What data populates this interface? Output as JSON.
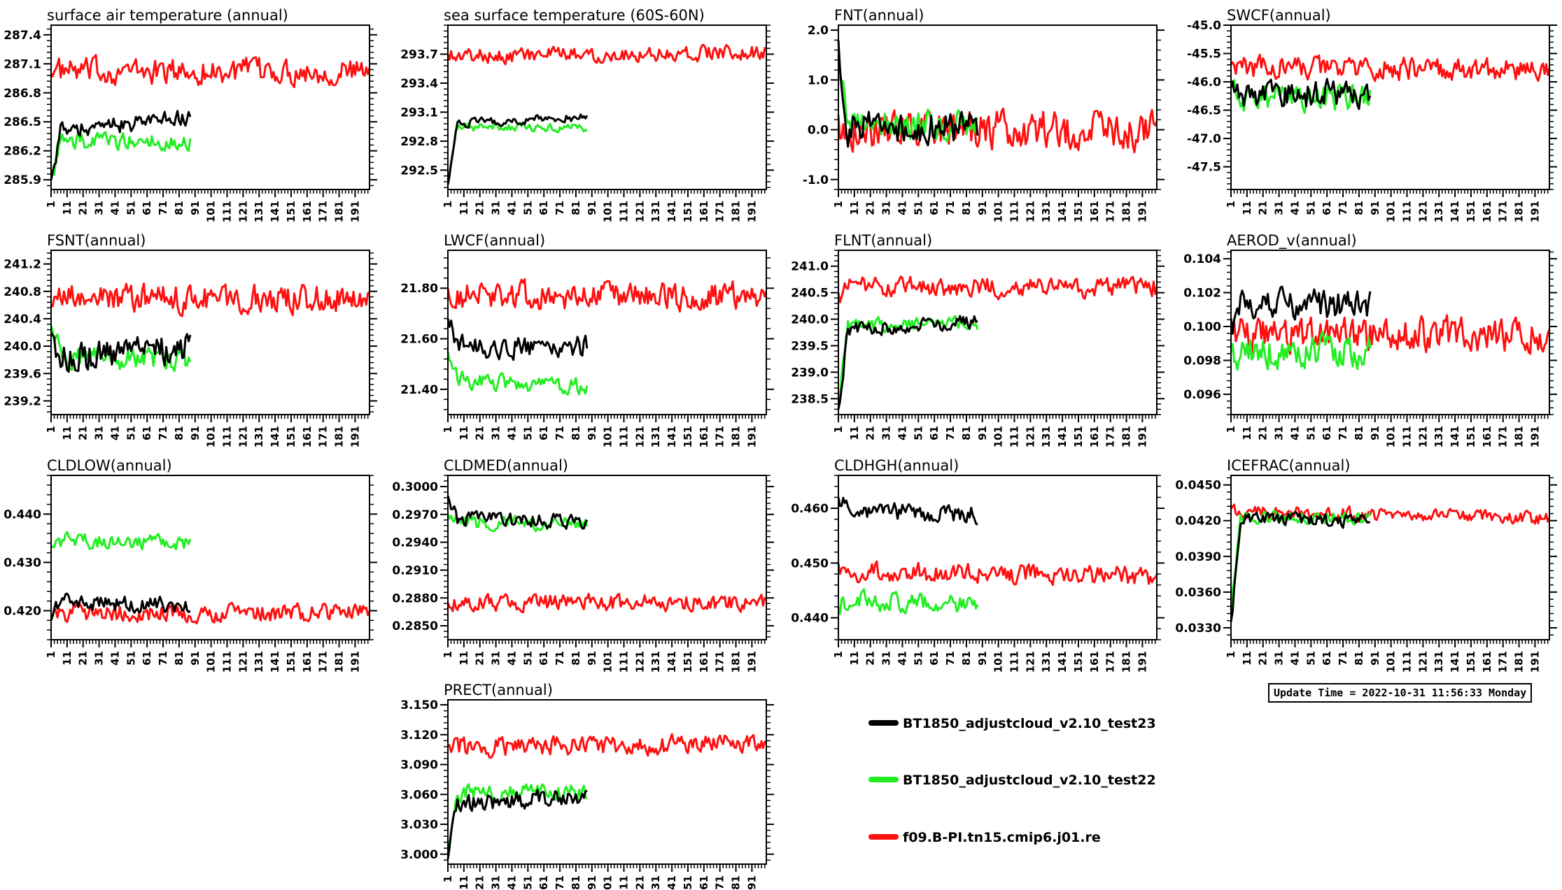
{
  "update_time": "Update Time = 2022-10-31 11:56:33 Monday",
  "x_tick_labels": [
    "1",
    "11",
    "21",
    "31",
    "41",
    "51",
    "61",
    "71",
    "81",
    "91",
    "101",
    "111",
    "121",
    "131",
    "141",
    "151",
    "161",
    "171",
    "181",
    "191"
  ],
  "legend": [
    {
      "name": "BT1850_adjustcloud_v2.10_test23",
      "color": "#000000"
    },
    {
      "name": "BT1850_adjustcloud_v2.10_test22",
      "color": "#22ee22"
    },
    {
      "name": "f09.B-PI.tn15.cmip6.j01.re",
      "color": "#ff1010"
    }
  ],
  "chart_data": [
    {
      "type": "line",
      "title": "surface air temperature (annual)",
      "xlim": [
        1,
        200
      ],
      "ylim": [
        285.8,
        287.5
      ],
      "yticks": [
        "285.9",
        "286.2",
        "286.5",
        "286.8",
        "287.1",
        "287.4"
      ],
      "ytick_values": [
        285.9,
        286.2,
        286.5,
        286.8,
        287.1,
        287.4
      ],
      "series": [
        {
          "color": "#ff1010",
          "length": 200,
          "start": 287.0,
          "level": 287.02,
          "noise": 0.12,
          "end": 287.02
        },
        {
          "color": "#22ee22",
          "length": 88,
          "start": 285.9,
          "level": 286.3,
          "noise": 0.08,
          "end": 286.3
        },
        {
          "color": "#000000",
          "length": 88,
          "start": 285.9,
          "level": 286.38,
          "noise": 0.08,
          "end": 286.55
        }
      ]
    },
    {
      "type": "line",
      "title": "sea surface temperature (60S-60N)",
      "xlim": [
        1,
        200
      ],
      "ylim": [
        292.3,
        294.0
      ],
      "yticks": [
        "292.5",
        "292.8",
        "293.1",
        "293.4",
        "293.7"
      ],
      "ytick_values": [
        292.5,
        292.8,
        293.1,
        293.4,
        293.7
      ],
      "series": [
        {
          "color": "#ff1010",
          "length": 200,
          "start": 293.7,
          "level": 293.68,
          "noise": 0.07,
          "end": 293.72
        },
        {
          "color": "#22ee22",
          "length": 88,
          "start": 292.4,
          "level": 292.95,
          "noise": 0.04,
          "end": 292.93
        },
        {
          "color": "#000000",
          "length": 88,
          "start": 292.35,
          "level": 292.98,
          "noise": 0.04,
          "end": 293.05
        }
      ]
    },
    {
      "type": "line",
      "title": "FNT(annual)",
      "xlim": [
        1,
        200
      ],
      "ylim": [
        -1.2,
        2.1
      ],
      "yticks": [
        "-1.0",
        "0.0",
        "1.0",
        "2.0"
      ],
      "ytick_values": [
        -1.0,
        0.0,
        1.0,
        2.0
      ],
      "series": [
        {
          "color": "#ff1010",
          "length": 200,
          "start": 0.3,
          "level": 0.0,
          "noise": 0.35,
          "end": 0.0
        },
        {
          "color": "#22ee22",
          "length": 88,
          "start": 1.5,
          "level": 0.1,
          "noise": 0.25,
          "end": 0.1
        },
        {
          "color": "#000000",
          "length": 88,
          "start": 1.8,
          "level": 0.05,
          "noise": 0.3,
          "end": 0.05
        }
      ]
    },
    {
      "type": "line",
      "title": "SWCF(annual)",
      "xlim": [
        1,
        200
      ],
      "ylim": [
        -47.9,
        -45.0
      ],
      "yticks": [
        "-47.5",
        "-47.0",
        "-46.5",
        "-46.0",
        "-45.5",
        "-45.0"
      ],
      "ytick_values": [
        -47.5,
        -47.0,
        -46.5,
        -46.0,
        -45.5,
        -45.0
      ],
      "series": [
        {
          "color": "#ff1010",
          "length": 200,
          "start": -45.7,
          "level": -45.75,
          "noise": 0.18,
          "end": -45.8
        },
        {
          "color": "#22ee22",
          "length": 88,
          "start": -46.1,
          "level": -46.3,
          "noise": 0.2,
          "end": -46.3
        },
        {
          "color": "#000000",
          "length": 88,
          "start": -46.1,
          "level": -46.25,
          "noise": 0.22,
          "end": -46.2
        }
      ]
    },
    {
      "type": "line",
      "title": "FSNT(annual)",
      "xlim": [
        1,
        200
      ],
      "ylim": [
        239.0,
        241.4
      ],
      "yticks": [
        "239.2",
        "239.6",
        "240.0",
        "240.4",
        "240.8",
        "241.2"
      ],
      "ytick_values": [
        239.2,
        239.6,
        240.0,
        240.4,
        240.8,
        241.2
      ],
      "series": [
        {
          "color": "#ff1010",
          "length": 200,
          "start": 240.6,
          "level": 240.7,
          "noise": 0.18,
          "end": 240.7
        },
        {
          "color": "#22ee22",
          "length": 88,
          "start": 240.3,
          "level": 239.85,
          "noise": 0.15,
          "end": 239.8
        },
        {
          "color": "#000000",
          "length": 88,
          "start": 240.2,
          "level": 239.8,
          "noise": 0.2,
          "end": 240.0
        }
      ]
    },
    {
      "type": "line",
      "title": "LWCF(annual)",
      "xlim": [
        1,
        200
      ],
      "ylim": [
        21.3,
        21.95
      ],
      "yticks": [
        "21.40",
        "21.60",
        "21.80"
      ],
      "ytick_values": [
        21.4,
        21.6,
        21.8
      ],
      "series": [
        {
          "color": "#ff1010",
          "length": 200,
          "start": 21.8,
          "level": 21.77,
          "noise": 0.05,
          "end": 21.77
        },
        {
          "color": "#22ee22",
          "length": 88,
          "start": 21.55,
          "level": 21.44,
          "noise": 0.03,
          "end": 21.41
        },
        {
          "color": "#000000",
          "length": 88,
          "start": 21.68,
          "level": 21.57,
          "noise": 0.04,
          "end": 21.57
        }
      ]
    },
    {
      "type": "line",
      "title": "FLNT(annual)",
      "xlim": [
        1,
        200
      ],
      "ylim": [
        238.2,
        241.3
      ],
      "yticks": [
        "238.5",
        "239.0",
        "239.5",
        "240.0",
        "240.5",
        "241.0"
      ],
      "ytick_values": [
        238.5,
        239.0,
        239.5,
        240.0,
        240.5,
        241.0
      ],
      "series": [
        {
          "color": "#ff1010",
          "length": 200,
          "start": 240.5,
          "level": 240.6,
          "noise": 0.17,
          "end": 240.6
        },
        {
          "color": "#22ee22",
          "length": 88,
          "start": 238.4,
          "level": 239.9,
          "noise": 0.12,
          "end": 239.9
        },
        {
          "color": "#000000",
          "length": 88,
          "start": 238.3,
          "level": 239.8,
          "noise": 0.12,
          "end": 239.95
        }
      ]
    },
    {
      "type": "line",
      "title": "AEROD_v(annual)",
      "xlim": [
        1,
        200
      ],
      "ylim": [
        0.0948,
        0.1045
      ],
      "yticks": [
        "0.096",
        "0.098",
        "0.100",
        "0.102",
        "0.104"
      ],
      "ytick_values": [
        0.096,
        0.098,
        0.1,
        0.102,
        0.104
      ],
      "series": [
        {
          "color": "#ff1010",
          "length": 200,
          "start": 0.1,
          "level": 0.0995,
          "noise": 0.0009,
          "end": 0.0995
        },
        {
          "color": "#22ee22",
          "length": 88,
          "start": 0.0985,
          "level": 0.0985,
          "noise": 0.0009,
          "end": 0.0985
        },
        {
          "color": "#000000",
          "length": 88,
          "start": 0.1005,
          "level": 0.1013,
          "noise": 0.0008,
          "end": 0.1013
        }
      ]
    },
    {
      "type": "line",
      "title": "CLDLOW(annual)",
      "xlim": [
        1,
        200
      ],
      "ylim": [
        0.414,
        0.448
      ],
      "yticks": [
        "0.420",
        "0.430",
        "0.440"
      ],
      "ytick_values": [
        0.42,
        0.43,
        0.44
      ],
      "series": [
        {
          "color": "#ff1010",
          "length": 200,
          "start": 0.419,
          "level": 0.4195,
          "noise": 0.0016,
          "end": 0.4195
        },
        {
          "color": "#22ee22",
          "length": 88,
          "start": 0.433,
          "level": 0.4345,
          "noise": 0.0014,
          "end": 0.434
        },
        {
          "color": "#000000",
          "length": 88,
          "start": 0.418,
          "level": 0.422,
          "noise": 0.0015,
          "end": 0.421
        }
      ]
    },
    {
      "type": "line",
      "title": "CLDMED(annual)",
      "xlim": [
        1,
        200
      ],
      "ylim": [
        0.2835,
        0.3012
      ],
      "yticks": [
        "0.2850",
        "0.2880",
        "0.2910",
        "0.2940",
        "0.2970",
        "0.3000"
      ],
      "ytick_values": [
        0.285,
        0.288,
        0.291,
        0.294,
        0.297,
        0.3
      ],
      "series": [
        {
          "color": "#ff1010",
          "length": 200,
          "start": 0.2875,
          "level": 0.2875,
          "noise": 0.0008,
          "end": 0.2875
        },
        {
          "color": "#22ee22",
          "length": 88,
          "start": 0.297,
          "level": 0.2962,
          "noise": 0.0007,
          "end": 0.296
        },
        {
          "color": "#000000",
          "length": 88,
          "start": 0.299,
          "level": 0.2966,
          "noise": 0.0007,
          "end": 0.2962
        }
      ]
    },
    {
      "type": "line",
      "title": "CLDHGH(annual)",
      "xlim": [
        1,
        200
      ],
      "ylim": [
        0.436,
        0.466
      ],
      "yticks": [
        "0.440",
        "0.450",
        "0.460"
      ],
      "ytick_values": [
        0.44,
        0.45,
        0.46
      ],
      "series": [
        {
          "color": "#ff1010",
          "length": 200,
          "start": 0.45,
          "level": 0.4485,
          "noise": 0.0016,
          "end": 0.4475
        },
        {
          "color": "#22ee22",
          "length": 88,
          "start": 0.442,
          "level": 0.4432,
          "noise": 0.0016,
          "end": 0.4425
        },
        {
          "color": "#000000",
          "length": 88,
          "start": 0.462,
          "level": 0.4595,
          "noise": 0.0015,
          "end": 0.459
        }
      ]
    },
    {
      "type": "line",
      "title": "ICEFRAC(annual)",
      "xlim": [
        1,
        200
      ],
      "ylim": [
        0.032,
        0.0458
      ],
      "yticks": [
        "0.0330",
        "0.0360",
        "0.0390",
        "0.0420",
        "0.0450"
      ],
      "ytick_values": [
        0.033,
        0.036,
        0.039,
        0.042,
        0.045
      ],
      "series": [
        {
          "color": "#ff1010",
          "length": 200,
          "start": 0.043,
          "level": 0.0428,
          "noise": 0.0005,
          "end": 0.0422
        },
        {
          "color": "#22ee22",
          "length": 88,
          "start": 0.0345,
          "level": 0.0423,
          "noise": 0.0005,
          "end": 0.0422
        },
        {
          "color": "#000000",
          "length": 88,
          "start": 0.0335,
          "level": 0.0422,
          "noise": 0.0005,
          "end": 0.042
        }
      ]
    },
    {
      "type": "line",
      "title": "PRECT(annual)",
      "xlim": [
        1,
        200
      ],
      "ylim": [
        2.99,
        3.155
      ],
      "yticks": [
        "3.000",
        "3.030",
        "3.060",
        "3.090",
        "3.120",
        "3.150"
      ],
      "ytick_values": [
        3.0,
        3.03,
        3.06,
        3.09,
        3.12,
        3.15
      ],
      "series": [
        {
          "color": "#ff1010",
          "length": 200,
          "start": 3.11,
          "level": 3.108,
          "noise": 0.009,
          "end": 3.11
        },
        {
          "color": "#22ee22",
          "length": 88,
          "start": 3.0,
          "level": 3.062,
          "noise": 0.008,
          "end": 3.062
        },
        {
          "color": "#000000",
          "length": 88,
          "start": 2.995,
          "level": 3.05,
          "noise": 0.008,
          "end": 3.058
        }
      ]
    }
  ]
}
